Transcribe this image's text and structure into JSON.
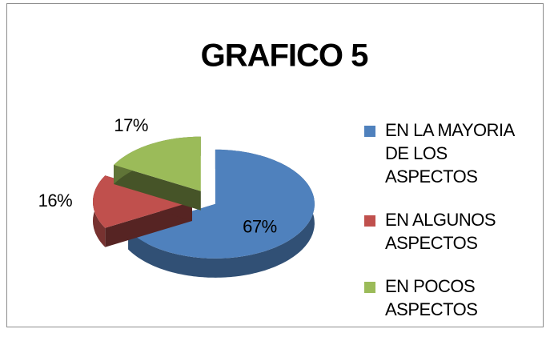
{
  "chart_data": {
    "type": "pie",
    "title": "GRAFICO 5",
    "categories": [
      "EN LA MAYORIA DE LOS ASPECTOS",
      "EN ALGUNOS ASPECTOS",
      "EN POCOS ASPECTOS"
    ],
    "values": [
      67,
      16,
      17
    ],
    "value_labels": [
      "67%",
      "16%",
      "17%"
    ],
    "colors": [
      "#4f81bd",
      "#c0504d",
      "#9bbb59"
    ],
    "legend": "right"
  }
}
